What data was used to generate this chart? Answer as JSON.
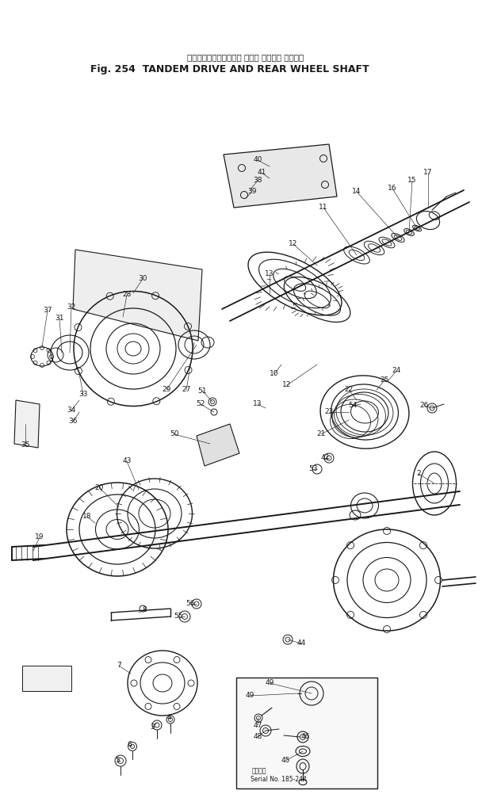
{
  "title_jp": "タンデムドライブおよび リヤー ホイール シャフト",
  "title_en": "Fig. 254  TANDEM DRIVE AND REAR WHEEL SHAFT",
  "bg_color": "#ffffff",
  "lc": "#1a1a1a",
  "serial_text": "Serial No. 185-244",
  "serial_jp": "通し号数"
}
